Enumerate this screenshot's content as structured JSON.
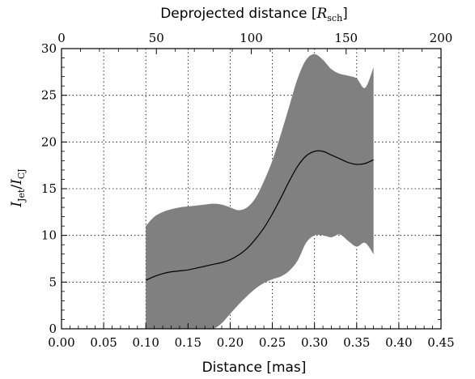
{
  "chart_data": {
    "type": "area",
    "xlabel": "Distance [mas]",
    "ylabel_main": "I",
    "ylabel_sub1": "Jet",
    "ylabel_sep": "/",
    "ylabel_sub2": "CJ",
    "top_xlabel_text": "Deprojected distance [",
    "top_xlabel_var": "R",
    "top_xlabel_sub": "sch",
    "top_xlabel_end": "]",
    "xlim": [
      0.0,
      0.45
    ],
    "ylim": [
      0,
      30
    ],
    "top_xlim": [
      0,
      200
    ],
    "x_ticks": [
      "0.00",
      "0.05",
      "0.10",
      "0.15",
      "0.20",
      "0.25",
      "0.30",
      "0.35",
      "0.40",
      "0.45"
    ],
    "y_ticks": [
      "0",
      "5",
      "10",
      "15",
      "20",
      "25",
      "30"
    ],
    "top_ticks": [
      "0",
      "50",
      "100",
      "150",
      "200"
    ],
    "grid": true,
    "series": [
      {
        "kind": "line",
        "color": "#000000",
        "x": [
          0.1,
          0.11,
          0.12,
          0.13,
          0.14,
          0.15,
          0.16,
          0.17,
          0.18,
          0.19,
          0.2,
          0.21,
          0.22,
          0.23,
          0.24,
          0.25,
          0.26,
          0.27,
          0.28,
          0.29,
          0.3,
          0.31,
          0.32,
          0.33,
          0.34,
          0.35,
          0.36,
          0.37
        ],
        "y": [
          5.2,
          5.6,
          5.9,
          6.1,
          6.2,
          6.3,
          6.5,
          6.7,
          6.9,
          7.1,
          7.4,
          7.9,
          8.6,
          9.6,
          10.8,
          12.3,
          14.0,
          15.8,
          17.4,
          18.5,
          19.0,
          19.0,
          18.6,
          18.2,
          17.8,
          17.6,
          17.7,
          18.1
        ]
      },
      {
        "kind": "band",
        "color": "#808080",
        "x": [
          0.1,
          0.11,
          0.12,
          0.13,
          0.14,
          0.15,
          0.16,
          0.17,
          0.18,
          0.19,
          0.2,
          0.21,
          0.22,
          0.23,
          0.24,
          0.25,
          0.26,
          0.27,
          0.28,
          0.29,
          0.3,
          0.31,
          0.32,
          0.33,
          0.34,
          0.35,
          0.36,
          0.37
        ],
        "upper": [
          11.0,
          12.0,
          12.5,
          12.8,
          13.0,
          13.1,
          13.2,
          13.3,
          13.4,
          13.3,
          13.0,
          12.7,
          13.0,
          14.0,
          15.8,
          18.0,
          20.8,
          23.8,
          26.8,
          28.8,
          29.4,
          28.8,
          27.8,
          27.3,
          27.1,
          26.8,
          25.8,
          28.0
        ],
        "lower": [
          0.0,
          0.0,
          0.0,
          0.0,
          0.0,
          0.0,
          0.0,
          0.0,
          0.0,
          0.6,
          1.6,
          2.6,
          3.5,
          4.3,
          4.9,
          5.3,
          5.6,
          6.2,
          7.3,
          9.2,
          10.0,
          10.0,
          9.8,
          10.1,
          9.4,
          8.8,
          9.2,
          8.0
        ]
      }
    ]
  }
}
